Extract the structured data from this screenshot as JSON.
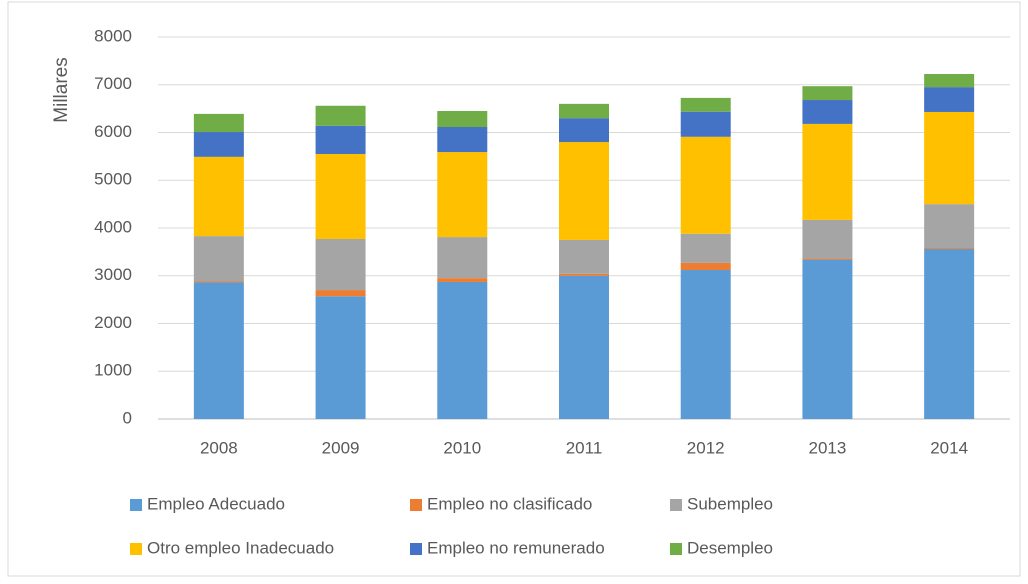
{
  "chart_data": {
    "type": "stacked_bar",
    "y_label": "Millares",
    "categories": [
      "2008",
      "2009",
      "2010",
      "2011",
      "2012",
      "2013",
      "2014"
    ],
    "series": [
      {
        "name": "Empleo Adecuado",
        "color": "#5b9bd5",
        "values": [
          2860,
          2570,
          2870,
          3000,
          3120,
          3330,
          3560
        ]
      },
      {
        "name": "Empleo no clasificado",
        "color": "#ed7d31",
        "values": [
          20,
          130,
          80,
          40,
          150,
          20,
          20
        ]
      },
      {
        "name": "Subempleo",
        "color": "#a5a5a5",
        "values": [
          950,
          1070,
          860,
          710,
          610,
          820,
          920
        ]
      },
      {
        "name": "Otro empleo Inadecuado",
        "color": "#ffc000",
        "values": [
          1660,
          1780,
          1780,
          2050,
          2030,
          2010,
          1930
        ]
      },
      {
        "name": "Empleo no remunerado",
        "color": "#4472c4",
        "values": [
          520,
          590,
          525,
          500,
          525,
          500,
          520
        ]
      },
      {
        "name": "Desempleo",
        "color": "#70ad47",
        "values": [
          380,
          420,
          335,
          300,
          290,
          290,
          275
        ]
      }
    ],
    "ylim": [
      0,
      8000
    ],
    "yticks": [
      0,
      1000,
      2000,
      3000,
      4000,
      5000,
      6000,
      7000,
      8000
    ],
    "grid": true,
    "legend": "bottom"
  }
}
